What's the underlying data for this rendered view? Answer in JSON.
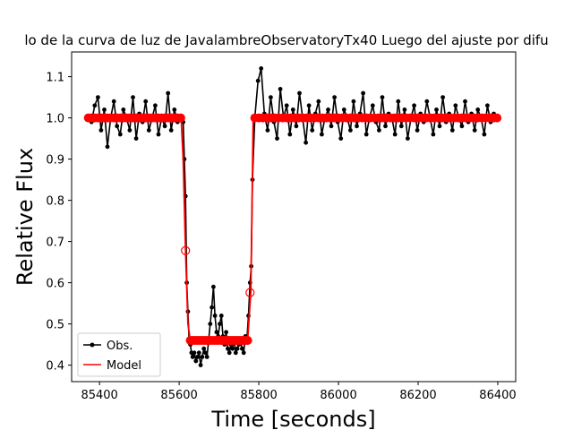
{
  "chart_data": {
    "type": "line",
    "title": "lo de la curva de luz de JavalambreObservatoryTx40 Luego del ajuste por difu",
    "xlabel": "Time [seconds]",
    "ylabel": "Relative Flux",
    "xlim": [
      85330,
      86445
    ],
    "ylim": [
      0.36,
      1.16
    ],
    "xticks": [
      85400,
      85600,
      85800,
      86000,
      86200,
      86400
    ],
    "yticks": [
      0.4,
      0.5,
      0.6,
      0.7,
      0.8,
      0.9,
      1.0,
      1.1
    ],
    "xtick_labels": [
      "85400",
      "85600",
      "85800",
      "86000",
      "86200",
      "86400"
    ],
    "ytick_labels": [
      "0.4",
      "0.5",
      "0.6",
      "0.7",
      "0.8",
      "0.9",
      "1.0",
      "1.1"
    ],
    "grid": false,
    "legend_position": "lower-left",
    "series": [
      {
        "name": "Obs.",
        "color": "#000000",
        "style": "line-with-dots",
        "x": [
          85372,
          85380,
          85388,
          85396,
          85404,
          85412,
          85420,
          85428,
          85436,
          85444,
          85452,
          85460,
          85468,
          85476,
          85484,
          85492,
          85500,
          85508,
          85516,
          85524,
          85532,
          85540,
          85548,
          85556,
          85564,
          85572,
          85580,
          85588,
          85596,
          85604,
          85610,
          85613,
          85616,
          85619,
          85622,
          85625,
          85628,
          85631,
          85634,
          85638,
          85642,
          85646,
          85650,
          85654,
          85658,
          85662,
          85666,
          85670,
          85674,
          85678,
          85682,
          85686,
          85690,
          85694,
          85698,
          85702,
          85706,
          85710,
          85714,
          85718,
          85722,
          85726,
          85730,
          85734,
          85738,
          85742,
          85746,
          85750,
          85754,
          85758,
          85762,
          85766,
          85770,
          85774,
          85778,
          85781,
          85784,
          85790,
          85798,
          85806,
          85814,
          85822,
          85830,
          85838,
          85846,
          85854,
          85862,
          85870,
          85878,
          85886,
          85894,
          85902,
          85910,
          85918,
          85926,
          85934,
          85942,
          85950,
          85958,
          85966,
          85974,
          85982,
          85990,
          85998,
          86006,
          86014,
          86022,
          86030,
          86038,
          86046,
          86054,
          86062,
          86070,
          86078,
          86086,
          86094,
          86102,
          86110,
          86118,
          86126,
          86134,
          86142,
          86150,
          86158,
          86166,
          86174,
          86182,
          86190,
          86198,
          86206,
          86214,
          86222,
          86230,
          86238,
          86246,
          86254,
          86262,
          86270,
          86278,
          86286,
          86294,
          86302,
          86310,
          86318,
          86326,
          86334,
          86342,
          86350,
          86358,
          86366,
          86374,
          86382,
          86390,
          86398
        ],
        "y": [
          1.0,
          0.99,
          1.03,
          1.05,
          0.97,
          1.02,
          0.93,
          1.0,
          1.04,
          0.98,
          0.96,
          1.02,
          1.0,
          0.97,
          1.05,
          0.95,
          1.01,
          0.99,
          1.04,
          0.97,
          1.0,
          1.03,
          0.96,
          1.0,
          0.98,
          1.06,
          0.97,
          1.02,
          0.99,
          1.0,
          0.99,
          0.9,
          0.81,
          0.6,
          0.53,
          0.46,
          0.45,
          0.43,
          0.42,
          0.43,
          0.41,
          0.42,
          0.43,
          0.4,
          0.42,
          0.44,
          0.43,
          0.42,
          0.46,
          0.5,
          0.54,
          0.59,
          0.52,
          0.48,
          0.47,
          0.5,
          0.52,
          0.47,
          0.45,
          0.48,
          0.44,
          0.43,
          0.45,
          0.44,
          0.46,
          0.43,
          0.44,
          0.45,
          0.46,
          0.44,
          0.43,
          0.47,
          0.46,
          0.52,
          0.6,
          0.64,
          0.85,
          1.0,
          1.09,
          1.12,
          1.01,
          0.97,
          1.05,
          0.99,
          0.95,
          1.07,
          1.0,
          1.03,
          0.96,
          1.02,
          0.98,
          1.06,
          1.0,
          0.94,
          1.03,
          0.97,
          1.01,
          1.04,
          0.96,
          1.0,
          1.02,
          0.98,
          1.05,
          0.99,
          0.95,
          1.02,
          1.0,
          0.97,
          1.04,
          0.98,
          1.01,
          1.06,
          0.96,
          1.0,
          1.03,
          0.99,
          0.97,
          1.05,
          0.98,
          1.01,
          1.0,
          0.96,
          1.04,
          0.98,
          1.02,
          0.95,
          1.0,
          1.03,
          0.97,
          1.01,
          0.99,
          1.04,
          1.0,
          0.96,
          1.02,
          0.98,
          1.05,
          0.99,
          1.01,
          0.97,
          1.03,
          1.0,
          0.98,
          1.04,
          0.99,
          1.01,
          0.97,
          1.02,
          1.0,
          0.96,
          1.03,
          0.99,
          1.01,
          1.0
        ]
      },
      {
        "name": "Model",
        "color": "#ff0000",
        "style": "line",
        "x": [
          85372,
          85605,
          85610,
          85616,
          85622,
          85628,
          85772,
          85776,
          85780,
          85786,
          86398
        ],
        "y": [
          1.0,
          1.0,
          0.9,
          0.68,
          0.5,
          0.46,
          0.46,
          0.52,
          0.58,
          1.0,
          1.0
        ]
      }
    ],
    "model_markers": {
      "x": [
        85372,
        85380,
        85388,
        85396,
        85404,
        85412,
        85420,
        85428,
        85436,
        85444,
        85452,
        85460,
        85468,
        85476,
        85484,
        85492,
        85500,
        85508,
        85516,
        85524,
        85532,
        85540,
        85548,
        85556,
        85564,
        85572,
        85580,
        85588,
        85596,
        85604,
        85628,
        85634,
        85640,
        85646,
        85652,
        85658,
        85664,
        85670,
        85676,
        85682,
        85688,
        85694,
        85700,
        85706,
        85712,
        85718,
        85724,
        85730,
        85736,
        85742,
        85748,
        85754,
        85760,
        85766,
        85772,
        85790,
        85800,
        85810,
        85820,
        85830,
        85840,
        85850,
        85860,
        85870,
        85880,
        85890,
        85900,
        85910,
        85920,
        85930,
        85940,
        85950,
        85960,
        85970,
        85980,
        85990,
        86000,
        86010,
        86020,
        86030,
        86040,
        86050,
        86060,
        86070,
        86080,
        86090,
        86100,
        86110,
        86120,
        86130,
        86140,
        86150,
        86160,
        86170,
        86180,
        86190,
        86200,
        86210,
        86220,
        86230,
        86240,
        86250,
        86260,
        86270,
        86280,
        86290,
        86300,
        86310,
        86320,
        86330,
        86340,
        86350,
        86360,
        86370,
        86380,
        86390,
        86398
      ],
      "y_pattern": "model"
    },
    "model_open_circles": {
      "x": [
        85616,
        85778
      ],
      "y": [
        0.678,
        0.576
      ]
    }
  }
}
